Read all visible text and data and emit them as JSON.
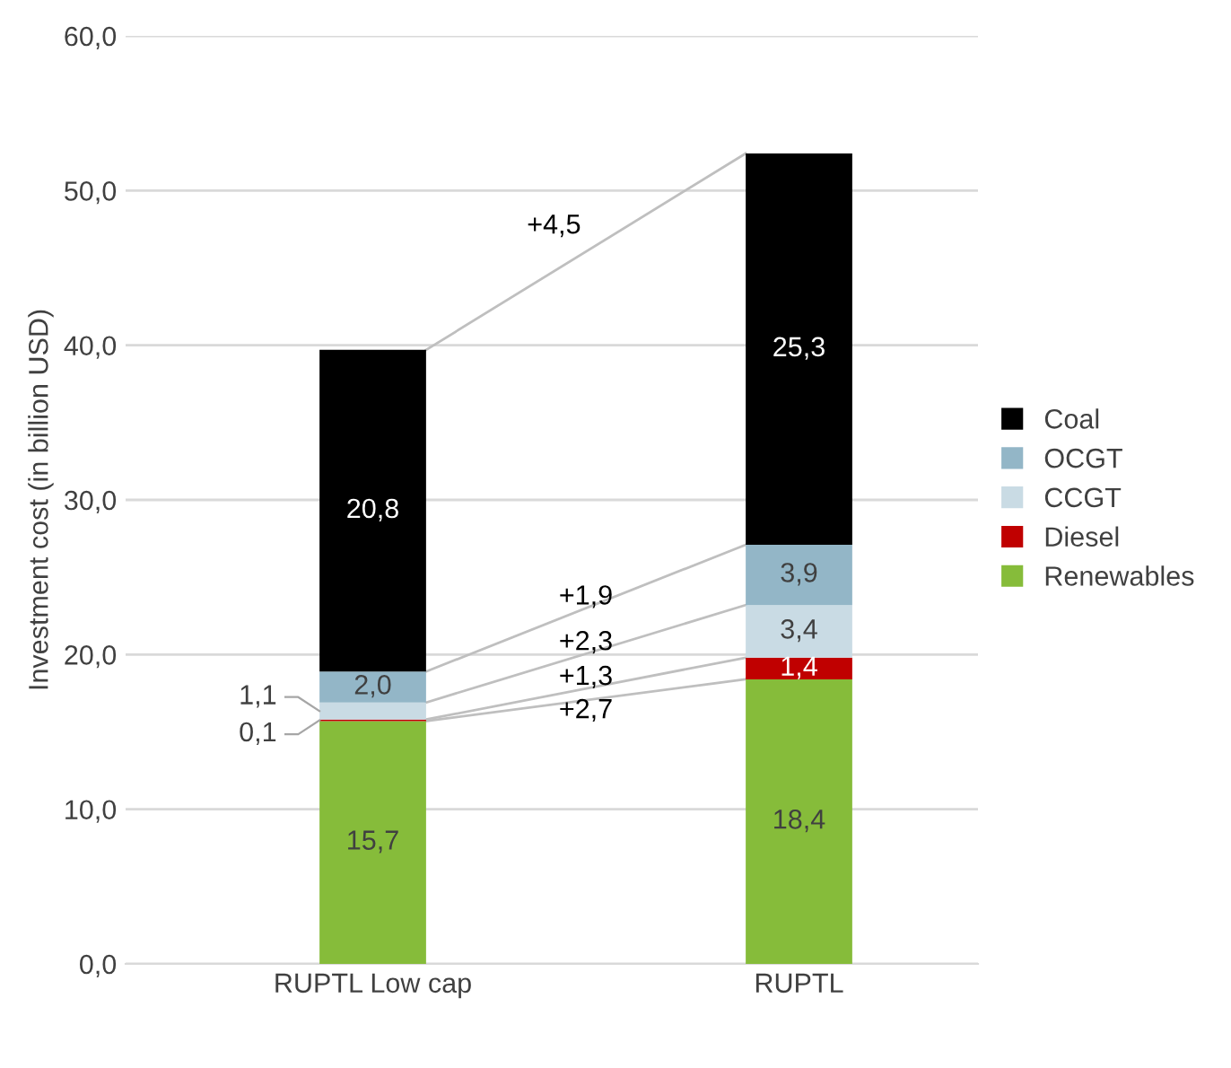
{
  "chart_data": {
    "type": "bar",
    "stacked": true,
    "ylabel": "Investment cost (in billion USD)",
    "categories": [
      "RUPTL Low cap",
      "RUPTL"
    ],
    "series": [
      {
        "name": "Renewables",
        "color": "#86bc3a",
        "values": [
          15.7,
          18.4
        ],
        "value_labels": [
          "15,7",
          "18,4"
        ]
      },
      {
        "name": "Diesel",
        "color": "#c00000",
        "values": [
          0.1,
          1.4
        ],
        "value_labels": [
          "0,1",
          "1,4"
        ]
      },
      {
        "name": "CCGT",
        "color": "#c9dbe4",
        "values": [
          1.1,
          3.4
        ],
        "value_labels": [
          "1,1",
          "3,4"
        ]
      },
      {
        "name": "OCGT",
        "color": "#93b6c7",
        "values": [
          2.0,
          3.9
        ],
        "value_labels": [
          "2,0",
          "3,9"
        ]
      },
      {
        "name": "Coal",
        "color": "#000000",
        "values": [
          20.8,
          25.3
        ],
        "value_labels": [
          "20,8",
          "25,3"
        ]
      }
    ],
    "annotations": [
      "+2,7",
      "+1,3",
      "+2,3",
      "+1,9",
      "+4,5"
    ],
    "ylim": [
      0,
      60
    ],
    "yticks": [
      {
        "value": 0,
        "label": "0,0"
      },
      {
        "value": 10,
        "label": "10,0"
      },
      {
        "value": 20,
        "label": "20,0"
      },
      {
        "value": 30,
        "label": "30,0"
      },
      {
        "value": 40,
        "label": "40,0"
      },
      {
        "value": 50,
        "label": "50,0"
      },
      {
        "value": 60,
        "label": "60,0"
      }
    ],
    "grid": "y",
    "legend": "right"
  }
}
